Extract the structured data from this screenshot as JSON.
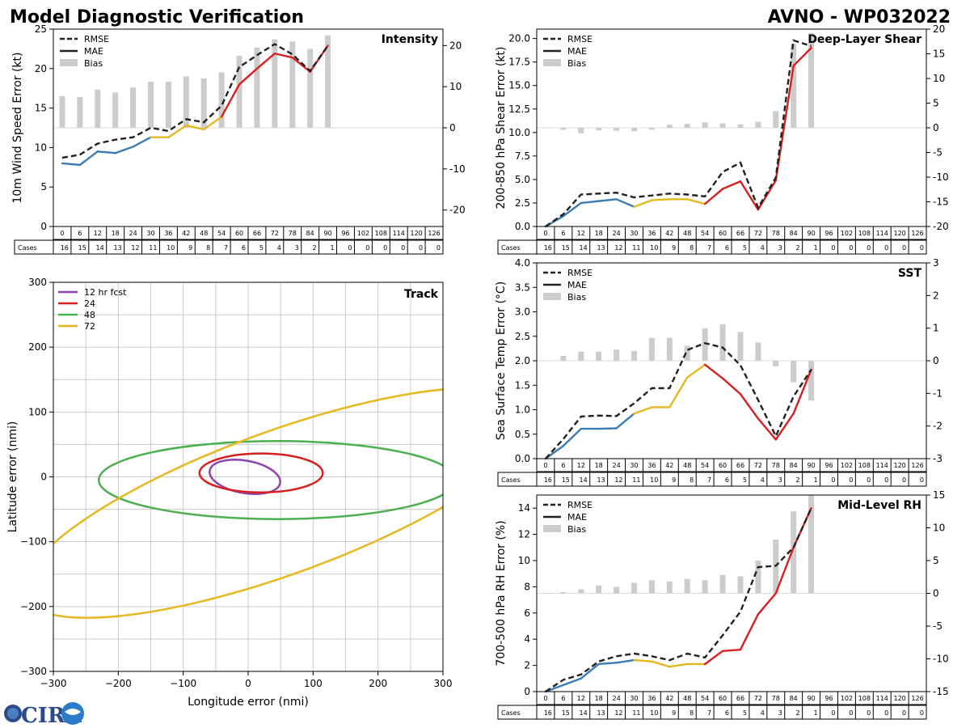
{
  "page": {
    "title_left": "Model Diagnostic Verification",
    "title_right": "AVNO - WP032022",
    "logo_text": "CIRA"
  },
  "colors": {
    "rmse": "#222222",
    "mae_blue": "#3a7db5",
    "mae_yellow": "#e6b820",
    "mae_red": "#d62020",
    "bias": "#cccccc",
    "grid": "#cccccc",
    "track_12": "#8e44ad",
    "track_24": "#d62020",
    "track_48": "#4caf50",
    "track_72": "#e6b820"
  },
  "legend_labels": {
    "rmse": "RMSE",
    "mae": "MAE",
    "bias": "Bias"
  },
  "cases_label": "Cases",
  "chart_data": [
    {
      "id": "intensity",
      "type": "line",
      "title": "Intensity",
      "ylabel": "10m Wind Speed Error (kt)",
      "ylim": [
        0,
        25
      ],
      "yticks": [
        0,
        5,
        10,
        15,
        20,
        25
      ],
      "y2lim": [
        -24,
        24
      ],
      "y2ticks": [
        -20,
        -10,
        0,
        10,
        20
      ],
      "x": [
        0,
        6,
        12,
        18,
        24,
        30,
        36,
        42,
        48,
        54,
        60,
        66,
        72,
        78,
        84,
        90,
        96,
        102,
        108,
        114,
        120,
        126
      ],
      "cases": [
        16,
        15,
        14,
        13,
        12,
        11,
        10,
        9,
        8,
        7,
        6,
        5,
        4,
        3,
        2,
        1,
        0,
        0,
        0,
        0,
        0,
        0
      ],
      "rmse": [
        8.7,
        9.1,
        10.5,
        11.0,
        11.3,
        12.5,
        12.1,
        13.6,
        13.2,
        15.3,
        20.2,
        21.7,
        23.1,
        21.8,
        19.7,
        22.9
      ],
      "mae": [
        8.0,
        7.8,
        9.5,
        9.3,
        10.1,
        11.3,
        11.3,
        12.8,
        12.3,
        13.9,
        18.0,
        20.0,
        21.9,
        21.4,
        19.6,
        22.9
      ],
      "bias": [
        7.7,
        7.5,
        9.3,
        8.6,
        9.8,
        11.2,
        11.2,
        12.5,
        12.0,
        13.5,
        17.5,
        19.5,
        21.5,
        21.0,
        19.2,
        22.5
      ]
    },
    {
      "id": "shear",
      "type": "line",
      "title": "Deep-Layer Shear",
      "ylabel": "200-850 hPa Shear Error (kt)",
      "ylim": [
        0,
        21
      ],
      "yticks": [
        0.0,
        2.5,
        5.0,
        7.5,
        10.0,
        12.5,
        15.0,
        17.5,
        20.0
      ],
      "y2lim": [
        -20,
        20
      ],
      "y2ticks": [
        -20,
        -15,
        -10,
        -5,
        0,
        5,
        10,
        15,
        20
      ],
      "x": [
        0,
        6,
        12,
        18,
        24,
        30,
        36,
        42,
        48,
        54,
        60,
        66,
        72,
        78,
        84,
        90,
        96,
        102,
        108,
        114,
        120,
        126
      ],
      "cases": [
        16,
        15,
        14,
        13,
        12,
        11,
        10,
        9,
        8,
        7,
        6,
        5,
        4,
        3,
        2,
        1,
        0,
        0,
        0,
        0,
        0,
        0
      ],
      "rmse": [
        0.0,
        1.3,
        3.4,
        3.5,
        3.6,
        3.1,
        3.3,
        3.5,
        3.4,
        3.2,
        5.8,
        6.8,
        2.0,
        5.2,
        19.8,
        19.2
      ],
      "mae": [
        0.0,
        1.1,
        2.5,
        2.7,
        2.9,
        2.1,
        2.8,
        2.9,
        2.9,
        2.4,
        4.0,
        4.8,
        1.8,
        4.9,
        17.1,
        19.0
      ],
      "bias": [
        0.0,
        -0.4,
        -1.1,
        -0.5,
        -0.6,
        -0.7,
        -0.4,
        0.6,
        0.8,
        1.1,
        0.9,
        0.7,
        1.2,
        3.4,
        17.0,
        19.2
      ]
    },
    {
      "id": "sst",
      "type": "line",
      "title": "SST",
      "ylabel": "Sea Surface Temp Error (°C)",
      "ylim": [
        0,
        4
      ],
      "yticks": [
        0.0,
        0.5,
        1.0,
        1.5,
        2.0,
        2.5,
        3.0,
        3.5,
        4.0
      ],
      "y2lim": [
        -3,
        3
      ],
      "y2ticks": [
        -3,
        -2,
        -1,
        0,
        1,
        2,
        3
      ],
      "x": [
        0,
        6,
        12,
        18,
        24,
        30,
        36,
        42,
        48,
        54,
        60,
        66,
        72,
        78,
        84,
        90,
        96,
        102,
        108,
        114,
        120,
        126
      ],
      "cases": [
        16,
        15,
        14,
        13,
        12,
        11,
        10,
        9,
        8,
        7,
        6,
        5,
        4,
        3,
        2,
        1,
        0,
        0,
        0,
        0,
        0,
        0
      ],
      "rmse": [
        0.0,
        0.4,
        0.86,
        0.88,
        0.87,
        1.13,
        1.44,
        1.44,
        2.22,
        2.36,
        2.27,
        1.91,
        1.2,
        0.46,
        1.27,
        1.82
      ],
      "mae": [
        0.0,
        0.26,
        0.61,
        0.61,
        0.62,
        0.92,
        1.05,
        1.05,
        1.66,
        1.92,
        1.64,
        1.32,
        0.82,
        0.39,
        0.92,
        1.82
      ],
      "bias": [
        0.0,
        0.15,
        0.28,
        0.28,
        0.34,
        0.3,
        0.7,
        0.7,
        0.46,
        1.0,
        1.12,
        0.88,
        0.56,
        -0.17,
        -0.66,
        -1.22
      ]
    },
    {
      "id": "rh",
      "type": "line",
      "title": "Mid-Level RH",
      "ylabel": "700-500 hPa RH Error (%)",
      "ylim": [
        0,
        15
      ],
      "yticks": [
        0,
        2,
        4,
        6,
        8,
        10,
        12,
        14
      ],
      "y2lim": [
        -15,
        15
      ],
      "y2ticks": [
        -15,
        -10,
        -5,
        0,
        5,
        10,
        15
      ],
      "x": [
        0,
        6,
        12,
        18,
        24,
        30,
        36,
        42,
        48,
        54,
        60,
        66,
        72,
        78,
        84,
        90,
        96,
        102,
        108,
        114,
        120,
        126
      ],
      "cases": [
        16,
        15,
        14,
        13,
        12,
        11,
        10,
        9,
        8,
        7,
        6,
        5,
        4,
        3,
        2,
        1,
        0,
        0,
        0,
        0,
        0,
        0
      ],
      "rmse": [
        0.0,
        0.9,
        1.3,
        2.3,
        2.7,
        2.9,
        2.7,
        2.4,
        2.9,
        2.6,
        4.3,
        6.1,
        9.5,
        9.6,
        11.0,
        14.0
      ],
      "mae": [
        0.0,
        0.5,
        1.0,
        2.1,
        2.2,
        2.4,
        2.3,
        1.9,
        2.1,
        2.1,
        3.1,
        3.2,
        5.9,
        7.5,
        11.0,
        14.0
      ],
      "bias": [
        0.0,
        0.2,
        0.6,
        1.2,
        1.0,
        1.6,
        2.0,
        1.8,
        2.2,
        2.0,
        2.8,
        2.6,
        5.0,
        8.2,
        12.5,
        15.0
      ]
    },
    {
      "id": "track",
      "type": "scatter",
      "title": "Track",
      "xlabel": "Longitude error (nmi)",
      "ylabel": "Latitude error (nmi)",
      "xlim": [
        -300,
        300
      ],
      "ylim": [
        -300,
        300
      ],
      "xticks": [
        -300,
        -200,
        -100,
        0,
        100,
        200,
        300
      ],
      "yticks": [
        -300,
        -200,
        -100,
        0,
        100,
        200,
        300
      ],
      "legend": [
        "12 hr fcst",
        "24",
        "48",
        "72"
      ],
      "ellipses": [
        {
          "label": "12 hr fcst",
          "cx": -5,
          "cy": 0,
          "rx": 55,
          "ry": 25,
          "angle": -10
        },
        {
          "label": "24",
          "cx": 20,
          "cy": 6,
          "rx": 95,
          "ry": 30,
          "angle": 0
        },
        {
          "label": "48",
          "cx": 45,
          "cy": -5,
          "rx": 275,
          "ry": 60,
          "angle": 0
        },
        {
          "label": "72",
          "cx": 50,
          "cy": -40,
          "rx": 420,
          "ry": 110,
          "angle": 20
        }
      ]
    }
  ]
}
